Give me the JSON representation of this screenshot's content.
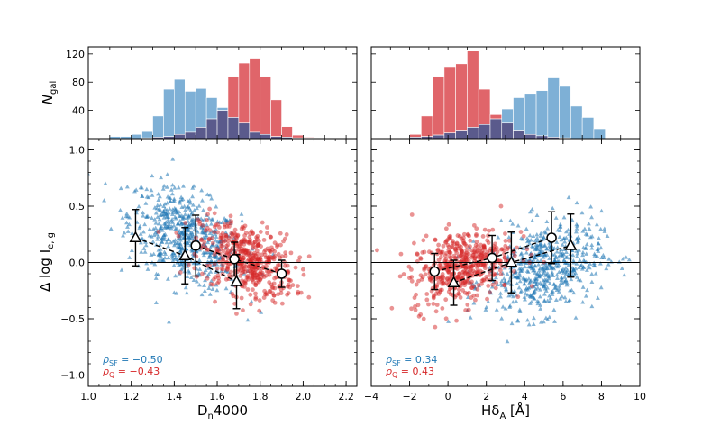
{
  "colors": {
    "sf": "#1f77b4",
    "q": "#d62728",
    "sf_hist": "#7eb0d6",
    "q_hist": "#e0656a",
    "overlap": "#5a5a8c"
  },
  "chart_data": [
    {
      "type": "histogram",
      "panel": "top-left",
      "ylabel": "N",
      "ylabel_sub": "gal",
      "xlim": [
        1.0,
        2.25
      ],
      "ylim": [
        0,
        130
      ],
      "yticks": [
        40,
        80,
        120
      ],
      "bin_edges": [
        1.1,
        1.15,
        1.2,
        1.25,
        1.3,
        1.35,
        1.4,
        1.45,
        1.5,
        1.55,
        1.6,
        1.65,
        1.7,
        1.75,
        1.8,
        1.85,
        1.9,
        1.95,
        2.0,
        2.05
      ],
      "series": [
        {
          "name": "SF",
          "values": [
            3,
            3,
            6,
            10,
            32,
            70,
            84,
            67,
            71,
            58,
            44,
            30,
            22,
            9,
            6,
            3,
            2,
            1,
            1
          ]
        },
        {
          "name": "Q",
          "values": [
            0,
            0,
            0,
            1,
            2,
            3,
            6,
            9,
            16,
            28,
            40,
            88,
            107,
            114,
            88,
            55,
            17,
            5,
            2
          ]
        }
      ]
    },
    {
      "type": "histogram",
      "panel": "top-right",
      "xlim": [
        -4,
        10
      ],
      "ylim": [
        0,
        130
      ],
      "yticks": [
        40,
        80,
        120
      ],
      "bin_edges": [
        -2,
        -1.4,
        -0.8,
        -0.2,
        0.4,
        1.0,
        1.6,
        2.2,
        2.8,
        3.4,
        4.0,
        4.6,
        5.2,
        5.8,
        6.4,
        7.0,
        7.6,
        8.2
      ],
      "series": [
        {
          "name": "SF",
          "values": [
            2,
            3,
            5,
            8,
            12,
            16,
            20,
            28,
            42,
            58,
            64,
            68,
            86,
            74,
            46,
            30,
            14
          ]
        },
        {
          "name": "Q",
          "values": [
            6,
            32,
            88,
            102,
            106,
            124,
            70,
            34,
            22,
            12,
            6,
            4,
            2,
            1,
            0,
            0,
            0
          ]
        }
      ]
    },
    {
      "type": "scatter",
      "panel": "bottom-left",
      "xlabel": "D",
      "xlabel_sub": "n",
      "xlabel_tail": "4000",
      "ylabel": "Δ log I",
      "ylabel_sub": "e, g",
      "xlim": [
        1.0,
        2.25
      ],
      "ylim": [
        -1.1,
        1.1
      ],
      "xticks": [
        "1.0",
        "1.2",
        "1.4",
        "1.6",
        "1.8",
        "2.0",
        "2.2"
      ],
      "yticks": [
        "1.0",
        "0.5",
        "0.0",
        "−0.5",
        "−1.0"
      ],
      "series": [
        {
          "name": "SF",
          "marker": "triangle",
          "cloud": {
            "x_mean": 1.45,
            "x_sd": 0.13,
            "y_intercept": 0.22,
            "y_slope": -0.75,
            "y_sd": 0.2,
            "n": 600
          },
          "binned": [
            {
              "x": 1.22,
              "y": 0.22,
              "err": 0.25
            },
            {
              "x": 1.45,
              "y": 0.06,
              "err": 0.25
            },
            {
              "x": 1.69,
              "y": -0.17,
              "err": 0.24
            }
          ]
        },
        {
          "name": "Q",
          "marker": "circle",
          "cloud": {
            "x_mean": 1.74,
            "x_sd": 0.11,
            "y_intercept": 0.02,
            "y_slope": -0.55,
            "y_sd": 0.16,
            "n": 500
          },
          "binned": [
            {
              "x": 1.5,
              "y": 0.15,
              "err": 0.27
            },
            {
              "x": 1.68,
              "y": 0.03,
              "err": 0.15
            },
            {
              "x": 1.9,
              "y": -0.1,
              "err": 0.12
            }
          ]
        }
      ],
      "annotations": [
        {
          "symbol": "ρ",
          "sub": "SF",
          "text": " = −0.50",
          "series": "SF"
        },
        {
          "symbol": "ρ",
          "sub": "Q",
          "text": " = −0.43",
          "series": "Q"
        }
      ]
    },
    {
      "type": "scatter",
      "panel": "bottom-right",
      "xlabel": "Hδ",
      "xlabel_sub": "A",
      "xlabel_tail": " [Å]",
      "xlim": [
        -4,
        10
      ],
      "ylim": [
        -1.1,
        1.1
      ],
      "xticks": [
        "−4",
        "−2",
        "0",
        "2",
        "4",
        "6",
        "8",
        "10"
      ],
      "series": [
        {
          "name": "SF",
          "marker": "triangle",
          "cloud": {
            "x_mean": 5.0,
            "x_sd": 1.5,
            "y_intercept": -0.05,
            "y_slope": 0.035,
            "y_sd": 0.2,
            "n": 600
          },
          "binned": [
            {
              "x": 0.3,
              "y": -0.18,
              "err": 0.2
            },
            {
              "x": 3.3,
              "y": 0.0,
              "err": 0.27
            },
            {
              "x": 6.4,
              "y": 0.15,
              "err": 0.28
            }
          ]
        },
        {
          "name": "Q",
          "marker": "circle",
          "cloud": {
            "x_mean": 0.7,
            "x_sd": 1.3,
            "y_intercept": -0.03,
            "y_slope": 0.045,
            "y_sd": 0.16,
            "n": 500
          },
          "binned": [
            {
              "x": -0.7,
              "y": -0.08,
              "err": 0.16
            },
            {
              "x": 2.3,
              "y": 0.04,
              "err": 0.2
            },
            {
              "x": 5.4,
              "y": 0.22,
              "err": 0.23
            }
          ]
        }
      ],
      "annotations": [
        {
          "symbol": "ρ",
          "sub": "SF",
          "text": " = 0.34",
          "series": "SF"
        },
        {
          "symbol": "ρ",
          "sub": "Q",
          "text": " = 0.43",
          "series": "Q"
        }
      ]
    }
  ]
}
